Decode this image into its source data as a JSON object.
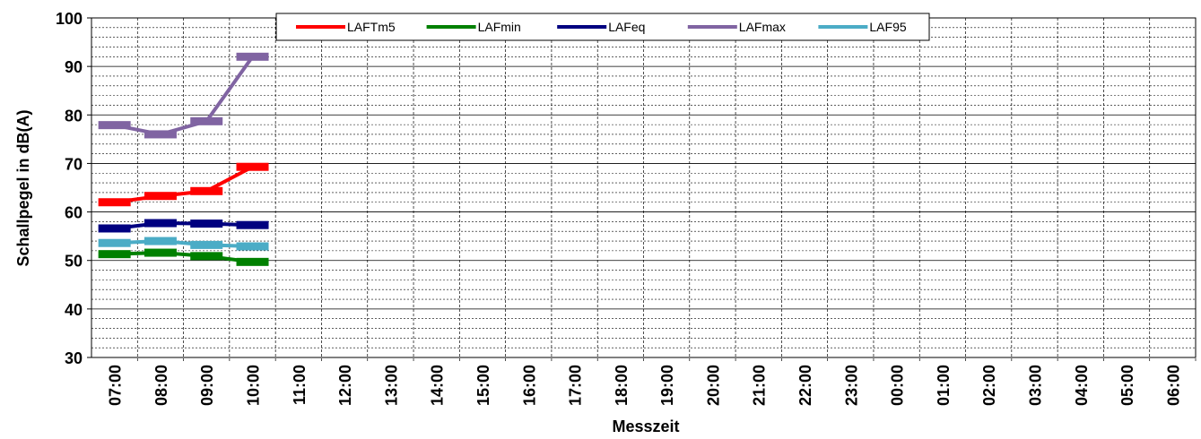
{
  "chart_data": {
    "type": "line",
    "categories": [
      "07:00",
      "08:00",
      "09:00",
      "10:00",
      "11:00",
      "12:00",
      "13:00",
      "14:00",
      "15:00",
      "16:00",
      "17:00",
      "18:00",
      "19:00",
      "20:00",
      "21:00",
      "22:00",
      "23:00",
      "00:00",
      "01:00",
      "02:00",
      "03:00",
      "04:00",
      "05:00",
      "06:00"
    ],
    "x_label": "Messzeit",
    "y_label": "Schallpegel in dB(A)",
    "ylim": [
      30,
      100
    ],
    "yticks": [
      30,
      40,
      50,
      60,
      70,
      80,
      90,
      100
    ],
    "minor_yticks": [
      32,
      34,
      36,
      38,
      42,
      44,
      46,
      48,
      52,
      54,
      56,
      58,
      62,
      64,
      66,
      68,
      72,
      74,
      76,
      78,
      82,
      84,
      86,
      88,
      92,
      94,
      96,
      98
    ],
    "grid": true,
    "legend": "top",
    "series": [
      {
        "name": "LAFTm5",
        "color": "#ff0000",
        "values": [
          62,
          63.3,
          64.3,
          69.3,
          null,
          null,
          null,
          null,
          null,
          null,
          null,
          null,
          null,
          null,
          null,
          null,
          null,
          null,
          null,
          null,
          null,
          null,
          null,
          null
        ]
      },
      {
        "name": "LAFmin",
        "color": "#008000",
        "values": [
          51.3,
          51.6,
          50.9,
          49.7,
          null,
          null,
          null,
          null,
          null,
          null,
          null,
          null,
          null,
          null,
          null,
          null,
          null,
          null,
          null,
          null,
          null,
          null,
          null,
          null
        ]
      },
      {
        "name": "LAFeq",
        "color": "#000080",
        "values": [
          56.6,
          57.7,
          57.6,
          57.3,
          null,
          null,
          null,
          null,
          null,
          null,
          null,
          null,
          null,
          null,
          null,
          null,
          null,
          null,
          null,
          null,
          null,
          null,
          null,
          null
        ]
      },
      {
        "name": "LAFmax",
        "color": "#8064a2",
        "values": [
          77.9,
          76,
          78.7,
          92,
          null,
          null,
          null,
          null,
          null,
          null,
          null,
          null,
          null,
          null,
          null,
          null,
          null,
          null,
          null,
          null,
          null,
          null,
          null,
          null
        ]
      },
      {
        "name": "LAF95",
        "color": "#4bacc6",
        "values": [
          53.6,
          54,
          53.2,
          52.9,
          null,
          null,
          null,
          null,
          null,
          null,
          null,
          null,
          null,
          null,
          null,
          null,
          null,
          null,
          null,
          null,
          null,
          null,
          null,
          null
        ]
      }
    ]
  }
}
